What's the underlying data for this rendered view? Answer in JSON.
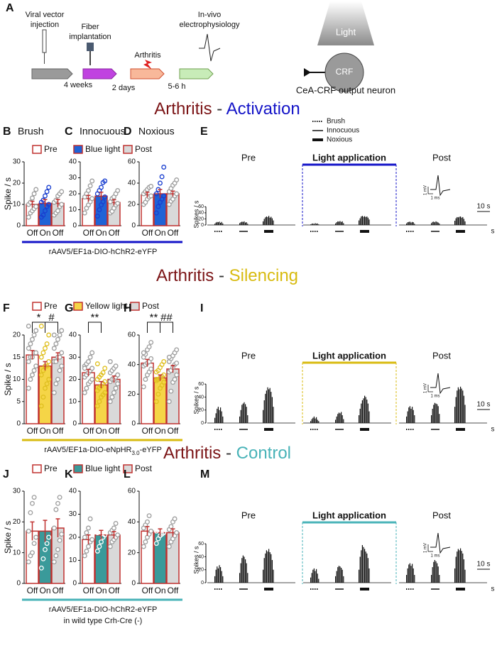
{
  "header": {
    "panel": "A",
    "steps": [
      [
        "Viral vector",
        "injection"
      ],
      [
        "Fiber",
        "implantation"
      ],
      [
        "Arthritis"
      ],
      [
        "In-vivo",
        "electrophysiology"
      ]
    ],
    "intervals": [
      "4 weeks",
      "2 days",
      "5-6 h"
    ],
    "light": "Light",
    "neuron": "CRF",
    "neuron_caption": "CeA-CRF output neuron"
  },
  "rows": [
    {
      "title": [
        "Arthritis",
        " - ",
        "Activation"
      ],
      "title_colors": [
        "#7b1416",
        "#333333",
        "#1414c8"
      ],
      "legend": [
        "Pre",
        "Blue light",
        "Post"
      ],
      "legend_colors": [
        "#ffffff",
        "#1f63d6",
        "#d9d9d9"
      ],
      "construct": [
        "rAAV5/EF1a-DIO-hChR2-eYFP"
      ],
      "color": "#1414c8"
    },
    {
      "title": [
        "Arthritis",
        " - ",
        "Silencing"
      ],
      "title_colors": [
        "#7b1416",
        "#333333",
        "#d8bb10"
      ],
      "legend": [
        "Pre",
        "Yellow light",
        "Post"
      ],
      "legend_colors": [
        "#ffffff",
        "#f5d547",
        "#d9d9d9"
      ],
      "construct": [
        "rAAV5/EF1a-DIO-eNpHR",
        "3.0",
        "-eYFP"
      ],
      "color": "#d8bb10"
    },
    {
      "title": [
        "Arthritis",
        " - ",
        "Control"
      ],
      "title_colors": [
        "#7b1416",
        "#333333",
        "#49b3b8"
      ],
      "legend": [
        "Pre",
        "Blue light",
        "Post"
      ],
      "legend_colors": [
        "#ffffff",
        "#3a9a9a",
        "#d9d9d9"
      ],
      "construct": [
        "rAAV5/EF1a-DIO-hChR2-eYFP"
      ],
      "color": "#49b3b8",
      "construct_color": "#555555",
      "note": "in wild type Crh-Cre (-)"
    }
  ],
  "chart_data": [
    {
      "type": "bar",
      "panel": "B",
      "title": "Brush",
      "ylabel": "Spike / s",
      "categories": [
        "Off",
        "On",
        "Off"
      ],
      "values": [
        10,
        10.5,
        10.5
      ],
      "errors": [
        1.5,
        1.8,
        1.8
      ],
      "points": [
        [
          4,
          6,
          7,
          8,
          9,
          10,
          11,
          13,
          15,
          17
        ],
        [
          4,
          5,
          7,
          9,
          10,
          11,
          12,
          14,
          16,
          18
        ],
        [
          5,
          6,
          7,
          9,
          10,
          11,
          12,
          14,
          15,
          16
        ]
      ],
      "colors": [
        "#ffffff",
        "#1f63d6",
        "#d9d9d9"
      ],
      "edge_color": "#c0302f",
      "point_colors": [
        "#9e9e9e",
        "#1a3fd0",
        "#9e9e9e"
      ],
      "ylim": [
        0,
        30
      ],
      "yticks": [
        0,
        10,
        20,
        30
      ]
    },
    {
      "type": "bar",
      "panel": "C",
      "title": "Innocuous",
      "categories": [
        "Off",
        "On",
        "Off"
      ],
      "values": [
        17,
        18.5,
        14.5
      ],
      "errors": [
        2,
        2.5,
        1.8
      ],
      "points": [
        [
          8,
          11,
          13,
          15,
          17,
          18,
          20,
          22,
          25,
          28
        ],
        [
          6,
          10,
          13,
          15,
          18,
          20,
          22,
          24,
          27,
          28
        ],
        [
          8,
          9,
          11,
          13,
          14,
          15,
          17,
          18,
          20,
          22
        ]
      ],
      "colors": [
        "#ffffff",
        "#1f63d6",
        "#d9d9d9"
      ],
      "edge_color": "#c0302f",
      "point_colors": [
        "#9e9e9e",
        "#1a3fd0",
        "#9e9e9e"
      ],
      "ylim": [
        0,
        40
      ],
      "yticks": [
        0,
        10,
        20,
        30,
        40
      ]
    },
    {
      "type": "bar",
      "panel": "D",
      "title": "Noxious",
      "categories": [
        "Off",
        "On",
        "Off"
      ],
      "values": [
        29,
        30,
        30
      ],
      "errors": [
        2.5,
        4,
        2.5
      ],
      "points": [
        [
          20,
          22,
          25,
          27,
          28,
          30,
          32,
          34,
          36,
          37
        ],
        [
          12,
          18,
          22,
          25,
          28,
          30,
          34,
          40,
          46,
          55
        ],
        [
          20,
          23,
          25,
          28,
          30,
          32,
          35,
          38,
          40,
          43
        ]
      ],
      "colors": [
        "#ffffff",
        "#1f63d6",
        "#d9d9d9"
      ],
      "edge_color": "#c0302f",
      "point_colors": [
        "#9e9e9e",
        "#1a3fd0",
        "#9e9e9e"
      ],
      "ylim": [
        0,
        60
      ],
      "yticks": [
        0,
        20,
        40,
        60
      ]
    },
    {
      "type": "spikes",
      "panel": "E",
      "ylabel": "Spikes / s",
      "conditions": [
        "Pre",
        "Light application",
        "Post"
      ],
      "light_color": "#1414c8",
      "legend": [
        "Brush",
        "Innocuous",
        "Noxious"
      ],
      "scale_bar": "10 s",
      "x_unit": "s",
      "inset": [
        "1 mV",
        "1 ms"
      ],
      "ylim": [
        0,
        70
      ],
      "yticks": [
        0,
        20,
        40,
        60
      ],
      "bursts": [
        [
          [
            4,
            8,
            10,
            9,
            11,
            7,
            10,
            5
          ],
          [
            6,
            9,
            11,
            10,
            12,
            8,
            9,
            4
          ],
          [
            12,
            20,
            25,
            28,
            26,
            30,
            24,
            27,
            22,
            15
          ]
        ],
        [
          [
            2,
            4,
            5,
            3,
            6,
            4,
            5,
            2
          ],
          [
            5,
            9,
            12,
            11,
            13,
            10,
            12,
            6
          ],
          [
            15,
            22,
            28,
            30,
            27,
            29,
            26,
            28,
            24,
            18
          ]
        ],
        [
          [
            5,
            9,
            10,
            11,
            8,
            10,
            9,
            4
          ],
          [
            6,
            10,
            11,
            9,
            12,
            10,
            8,
            5
          ],
          [
            14,
            22,
            26,
            25,
            27,
            28,
            24,
            26,
            20,
            12
          ]
        ]
      ]
    },
    {
      "type": "bar",
      "panel": "F",
      "ylabel": "Spike / s",
      "categories": [
        "Off",
        "On",
        "Off"
      ],
      "values": [
        15.5,
        13,
        15
      ],
      "errors": [
        1,
        1,
        1
      ],
      "annotations": [
        "*",
        "#"
      ],
      "points": [
        [
          8,
          10,
          11,
          12,
          13,
          14,
          15,
          15,
          16,
          16,
          17,
          18,
          19,
          20,
          21,
          22
        ],
        [
          4,
          6,
          8,
          9,
          10,
          11,
          12,
          13,
          13,
          14,
          15,
          16,
          17,
          18,
          20,
          22
        ],
        [
          7,
          9,
          10,
          12,
          13,
          14,
          14,
          15,
          15,
          16,
          17,
          18,
          19,
          20,
          21,
          20
        ]
      ],
      "colors": [
        "#ffffff",
        "#f5d547",
        "#d9d9d9"
      ],
      "edge_color": "#c0302f",
      "point_colors": [
        "#9e9e9e",
        "#e0c020",
        "#9e9e9e"
      ],
      "ylim": [
        0,
        20
      ],
      "yticks": [
        0,
        5,
        10,
        15,
        20
      ]
    },
    {
      "type": "bar",
      "panel": "G",
      "categories": [
        "Off",
        "On",
        "Off"
      ],
      "values": [
        23,
        17.5,
        20
      ],
      "errors": [
        1.5,
        1.5,
        1.5
      ],
      "annotations": [
        "**"
      ],
      "points": [
        [
          14,
          16,
          18,
          19,
          20,
          21,
          22,
          23,
          24,
          25,
          26,
          27,
          28,
          30,
          32,
          25
        ],
        [
          8,
          10,
          12,
          13,
          14,
          15,
          16,
          17,
          18,
          19,
          20,
          21,
          22,
          23,
          25,
          27
        ],
        [
          10,
          12,
          14,
          16,
          18,
          19,
          20,
          20,
          21,
          22,
          23,
          24,
          25,
          26,
          22,
          28
        ]
      ],
      "colors": [
        "#ffffff",
        "#f5d547",
        "#d9d9d9"
      ],
      "edge_color": "#c0302f",
      "point_colors": [
        "#9e9e9e",
        "#e0c020",
        "#9e9e9e"
      ],
      "ylim": [
        0,
        40
      ],
      "yticks": [
        0,
        10,
        20,
        30,
        40
      ]
    },
    {
      "type": "bar",
      "panel": "H",
      "categories": [
        "Off",
        "On",
        "Off"
      ],
      "values": [
        41,
        31,
        37
      ],
      "errors": [
        2.5,
        2,
        2.5
      ],
      "annotations": [
        "**",
        "##"
      ],
      "points": [
        [
          25,
          30,
          33,
          35,
          37,
          39,
          40,
          41,
          42,
          44,
          45,
          47,
          50,
          52,
          55,
          48
        ],
        [
          15,
          20,
          24,
          26,
          28,
          29,
          30,
          31,
          32,
          33,
          35,
          36,
          38,
          40,
          42,
          30
        ],
        [
          15,
          22,
          28,
          30,
          33,
          35,
          36,
          38,
          40,
          41,
          42,
          44,
          46,
          48,
          50,
          45
        ]
      ],
      "colors": [
        "#ffffff",
        "#f5d547",
        "#d9d9d9"
      ],
      "edge_color": "#c0302f",
      "point_colors": [
        "#9e9e9e",
        "#e0c020",
        "#9e9e9e"
      ],
      "ylim": [
        0,
        60
      ],
      "yticks": [
        0,
        20,
        40,
        60
      ]
    },
    {
      "type": "spikes",
      "panel": "I",
      "ylabel": "Spikes / s",
      "conditions": [
        "Pre",
        "Light application",
        "Post"
      ],
      "light_color": "#d8bb10",
      "scale_bar": "10 s",
      "x_unit": "s",
      "inset": [
        "1 mV",
        "1 ms"
      ],
      "ylim": [
        0,
        70
      ],
      "yticks": [
        0,
        20,
        40,
        60
      ],
      "bursts": [
        [
          [
            8,
            15,
            22,
            25,
            20,
            24,
            18,
            10
          ],
          [
            10,
            20,
            28,
            30,
            32,
            29,
            25,
            12
          ],
          [
            20,
            35,
            45,
            50,
            55,
            52,
            54,
            48,
            40,
            25
          ]
        ],
        [
          [
            3,
            6,
            8,
            10,
            7,
            9,
            5,
            3
          ],
          [
            5,
            10,
            14,
            16,
            15,
            17,
            12,
            6
          ],
          [
            12,
            22,
            30,
            35,
            38,
            42,
            40,
            36,
            30,
            18
          ]
        ],
        [
          [
            10,
            18,
            24,
            26,
            22,
            25,
            20,
            12
          ],
          [
            12,
            22,
            28,
            31,
            30,
            29,
            26,
            14
          ],
          [
            25,
            40,
            50,
            55,
            52,
            56,
            53,
            50,
            42,
            28
          ]
        ]
      ]
    },
    {
      "type": "bar",
      "panel": "J",
      "ylabel": "Spike / s",
      "categories": [
        "Off",
        "On",
        "Off"
      ],
      "values": [
        17,
        17,
        18
      ],
      "errors": [
        3,
        3.5,
        3
      ],
      "points": [
        [
          7,
          9,
          10,
          13,
          15,
          17,
          23,
          26,
          28
        ],
        [
          5,
          8,
          11,
          13,
          15,
          18,
          20,
          26,
          28
        ],
        [
          7,
          9,
          11,
          14,
          16,
          18,
          24,
          26,
          28
        ]
      ],
      "colors": [
        "#ffffff",
        "#3a9a9a",
        "#d9d9d9"
      ],
      "edge_color": "#c0302f",
      "point_colors": [
        "#9e9e9e",
        "#ffffff",
        "#9e9e9e"
      ],
      "ylim": [
        0,
        30
      ],
      "yticks": [
        0,
        10,
        20,
        30
      ]
    },
    {
      "type": "bar",
      "panel": "K",
      "categories": [
        "Off",
        "On",
        "Off"
      ],
      "values": [
        19,
        21,
        21
      ],
      "errors": [
        2,
        2,
        1.5
      ],
      "points": [
        [
          12,
          14,
          16,
          18,
          19,
          20,
          22,
          24,
          28
        ],
        [
          14,
          16,
          18,
          20,
          21,
          22,
          23,
          25,
          28
        ],
        [
          16,
          18,
          19,
          20,
          21,
          22,
          23,
          24,
          26
        ]
      ],
      "colors": [
        "#ffffff",
        "#3a9a9a",
        "#d9d9d9"
      ],
      "edge_color": "#c0302f",
      "point_colors": [
        "#9e9e9e",
        "#ffffff",
        "#9e9e9e"
      ],
      "ylim": [
        0,
        40
      ],
      "yticks": [
        0,
        10,
        20,
        30,
        40
      ]
    },
    {
      "type": "bar",
      "panel": "L",
      "categories": [
        "Off",
        "On",
        "Off"
      ],
      "values": [
        34,
        33,
        33
      ],
      "errors": [
        3,
        2.5,
        2.5
      ],
      "points": [
        [
          24,
          27,
          30,
          32,
          34,
          36,
          38,
          40,
          44
        ],
        [
          26,
          29,
          31,
          32,
          33,
          34,
          36,
          38,
          40
        ],
        [
          24,
          27,
          29,
          31,
          33,
          35,
          37,
          40,
          42
        ]
      ],
      "colors": [
        "#ffffff",
        "#3a9a9a",
        "#d9d9d9"
      ],
      "edge_color": "#c0302f",
      "point_colors": [
        "#9e9e9e",
        "#ffffff",
        "#9e9e9e"
      ],
      "ylim": [
        0,
        60
      ],
      "yticks": [
        0,
        20,
        40,
        60
      ]
    },
    {
      "type": "spikes",
      "panel": "M",
      "ylabel": "Spikes / s",
      "conditions": [
        "Pre",
        "Light application",
        "Post"
      ],
      "light_color": "#49b3b8",
      "scale_bar": "10 s",
      "x_unit": "s",
      "inset": [
        "1 mV",
        "1 ms"
      ],
      "ylim": [
        0,
        70
      ],
      "yticks": [
        0,
        20,
        40,
        60
      ],
      "bursts": [
        [
          [
            10,
            20,
            25,
            22,
            27,
            24,
            18,
            10
          ],
          [
            15,
            30,
            38,
            42,
            40,
            36,
            30,
            15
          ],
          [
            20,
            38,
            45,
            50,
            48,
            52,
            47,
            44,
            35,
            20
          ]
        ],
        [
          [
            8,
            15,
            20,
            22,
            18,
            21,
            14,
            6
          ],
          [
            10,
            18,
            24,
            26,
            25,
            23,
            20,
            10
          ],
          [
            20,
            40,
            50,
            58,
            55,
            52,
            48,
            45,
            38,
            22
          ]
        ],
        [
          [
            12,
            22,
            28,
            30,
            26,
            29,
            22,
            12
          ],
          [
            12,
            24,
            32,
            35,
            33,
            30,
            25,
            12
          ],
          [
            22,
            40,
            48,
            52,
            50,
            53,
            49,
            45,
            36,
            20
          ]
        ]
      ]
    }
  ]
}
